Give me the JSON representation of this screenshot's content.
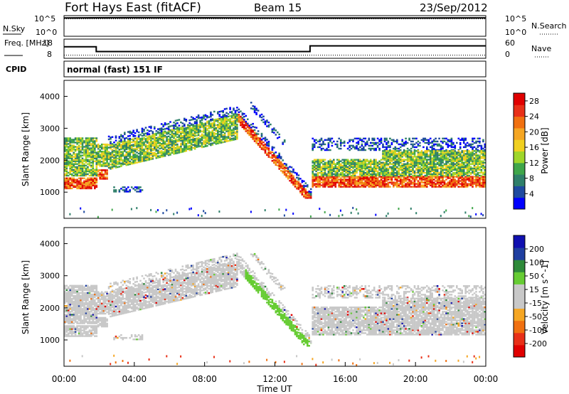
{
  "header": {
    "station": "Fort Hays East (fitACF)",
    "beam": "Beam 15",
    "date": "23/Sep/2012"
  },
  "colors": {
    "data_trace": "#000000",
    "power_scale": [
      "#0000ff",
      "#1f4aa0",
      "#2f7f6a",
      "#3fa64a",
      "#9fd62a",
      "#f0d020",
      "#f5a623",
      "#f07010",
      "#e83018",
      "#e00000"
    ],
    "velocity_scale": [
      "#1010b0",
      "#1f3fa0",
      "#2e8a3a",
      "#66cc33",
      "#c8c8c8",
      "#c8c8c8",
      "#f5a623",
      "#f07010",
      "#e83018",
      "#e00000"
    ]
  },
  "chart_data": [
    {
      "type": "line",
      "panel": "noise",
      "left_label": "N.Sky",
      "right_label": "N.Search",
      "left_ticks": [
        "10^5",
        "10^0"
      ],
      "right_ticks": [
        "10^5",
        "10^0"
      ],
      "series": [
        {
          "name": "N.Sky",
          "x": [
            "00:00",
            "04:00",
            "08:00",
            "12:00",
            "16:00",
            "20:00",
            "24:00"
          ],
          "values": [
            50000,
            60000,
            55000,
            50000,
            48000,
            50000,
            52000
          ]
        },
        {
          "name": "N.Search",
          "x": [
            "00:00",
            "24:00"
          ],
          "values": [
            30000,
            30000
          ]
        }
      ]
    },
    {
      "type": "line",
      "panel": "frequency",
      "left_label": "Freq. [MHz]",
      "right_label": "Nave",
      "left_ticks": [
        18,
        8
      ],
      "right_ticks": [
        60,
        0
      ],
      "series": [
        {
          "name": "Freq.",
          "x": [
            "00:00",
            "01:50",
            "01:50",
            "14:00",
            "14:00",
            "24:00"
          ],
          "values": [
            14,
            14,
            11.5,
            11.5,
            14.5,
            14.5
          ]
        },
        {
          "name": "Nave",
          "x": [
            "00:00",
            "24:00"
          ],
          "values": [
            10,
            10
          ]
        }
      ]
    },
    {
      "type": "table",
      "panel": "cpid",
      "label": "CPID",
      "text": "normal (fast) 151 IF"
    },
    {
      "type": "heatmap",
      "panel": "power",
      "ylabel": "Slant Range [km]",
      "ylim": [
        180,
        4500
      ],
      "yticks": [
        1000,
        2000,
        3000,
        4000
      ],
      "xlim": [
        "00:00",
        "24:00"
      ],
      "colorbar_label": "Power [dB]",
      "colorbar_ticks": [
        4,
        8,
        12,
        16,
        20,
        24,
        28
      ],
      "colorbar_range": [
        0,
        30
      ]
    },
    {
      "type": "heatmap",
      "panel": "velocity",
      "ylabel": "Slant Range [km]",
      "ylim": [
        180,
        4500
      ],
      "yticks": [
        1000,
        2000,
        3000,
        4000
      ],
      "xlim": [
        "00:00",
        "24:00"
      ],
      "xlabel": "Time UT",
      "xticks": [
        "00:00",
        "04:00",
        "08:00",
        "12:00",
        "16:00",
        "20:00",
        "00:00"
      ],
      "colorbar_label": "Velocity [m s^-1]",
      "colorbar_ticks": [
        200,
        100,
        50,
        15,
        -15,
        -50,
        -100,
        -200
      ],
      "colorbar_range": [
        -250,
        250
      ]
    }
  ]
}
